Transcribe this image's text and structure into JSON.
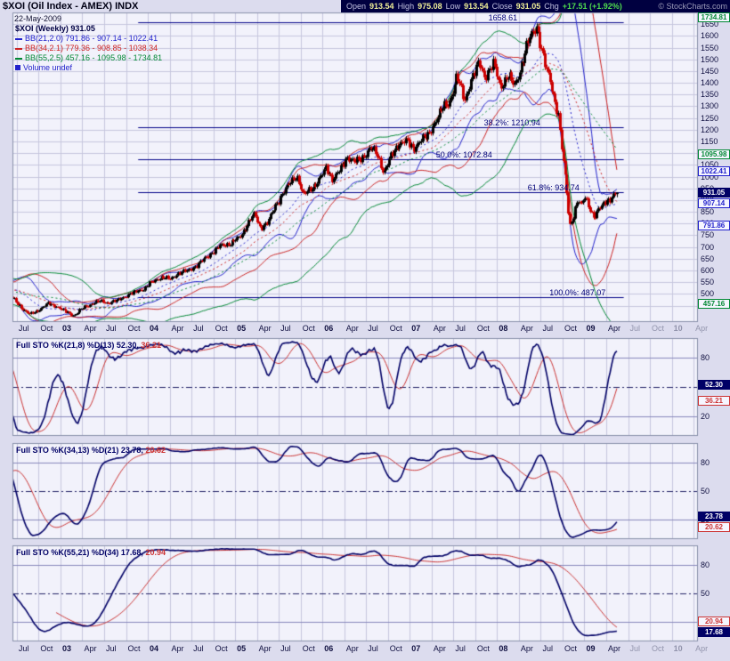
{
  "header": {
    "symbol_title": "$XOI (Oil Index - AMEX) INDX",
    "date": "22-May-2009",
    "copyright": "© StockCharts.com",
    "ohlc": {
      "open_label": "Open",
      "open": "913.54",
      "high_label": "High",
      "high": "975.08",
      "low_label": "Low",
      "low": "913.54",
      "close_label": "Close",
      "close": "931.05",
      "chg_label": "Chg",
      "chg": "+17.51 (+1.92%)"
    }
  },
  "main_legend": {
    "title": "$XOI (Weekly) 931.05",
    "bb21": "BB(21,2.0) 791.86 - 907.14 - 1022.41",
    "bb34": "BB(34,2.1) 779.36 - 908.85 - 1038.34",
    "bb55": "BB(55,2.5) 457.16 - 1095.98 - 1734.81",
    "volume": "Volume undef"
  },
  "colors": {
    "page_bg": "#dcdcee",
    "plot_bg": "#f2f2fb",
    "grid": "#c6c6de",
    "frame": "#8890aa",
    "header_bar_bg": "#000040",
    "candle_up": "#000000",
    "candle_down": "#cc0000",
    "bb21": "#2222cc",
    "bb34": "#cc2222",
    "bb55": "#008833",
    "fib_line": "#000088",
    "axis_text": "#101040",
    "future_text": "#9294ac",
    "osc_ref": "#8888bb",
    "osc_mid": "#222266",
    "sto_k": "#000066",
    "sto_d": "#cc3333"
  },
  "chart_data": {
    "type": "candlestick",
    "main": {
      "symbol": "$XOI",
      "timeframe": "Weekly",
      "last_close": 931.05,
      "ylim": [
        380,
        1700
      ],
      "y_ticks": {
        "start": 450,
        "end": 1650,
        "step": 50
      },
      "x_range": [
        2002.45,
        2010.3
      ],
      "x_quarter_start": 2002.5,
      "last_t": 2009.39,
      "series_start": 2000.9,
      "x_labels": [
        "Jul",
        "Oct",
        "03",
        "Apr",
        "Jul",
        "Oct",
        "04",
        "Apr",
        "Jul",
        "Oct",
        "05",
        "Apr",
        "Jul",
        "Oct",
        "06",
        "Apr",
        "Jul",
        "Oct",
        "07",
        "Apr",
        "Jul",
        "Oct",
        "08",
        "Apr",
        "Jul",
        "Oct",
        "09",
        "Apr",
        "Jul",
        "Oct",
        "10",
        "Apr"
      ],
      "anchors": [
        [
          2000.9,
          545
        ],
        [
          2001.15,
          585
        ],
        [
          2001.4,
          555
        ],
        [
          2001.7,
          465
        ],
        [
          2001.9,
          505
        ],
        [
          2002.1,
          525
        ],
        [
          2002.3,
          540
        ],
        [
          2002.46,
          478
        ],
        [
          2002.55,
          440
        ],
        [
          2002.65,
          412
        ],
        [
          2002.75,
          432
        ],
        [
          2002.85,
          458
        ],
        [
          2002.95,
          448
        ],
        [
          2003.05,
          425
        ],
        [
          2003.15,
          408
        ],
        [
          2003.25,
          438
        ],
        [
          2003.35,
          458
        ],
        [
          2003.45,
          468
        ],
        [
          2003.55,
          462
        ],
        [
          2003.65,
          472
        ],
        [
          2003.75,
          492
        ],
        [
          2003.85,
          507
        ],
        [
          2003.95,
          522
        ],
        [
          2004.05,
          550
        ],
        [
          2004.15,
          572
        ],
        [
          2004.25,
          562
        ],
        [
          2004.35,
          588
        ],
        [
          2004.45,
          598
        ],
        [
          2004.55,
          618
        ],
        [
          2004.65,
          650
        ],
        [
          2004.75,
          682
        ],
        [
          2004.85,
          707
        ],
        [
          2004.95,
          717
        ],
        [
          2005.05,
          740
        ],
        [
          2005.13,
          792
        ],
        [
          2005.21,
          838
        ],
        [
          2005.29,
          785
        ],
        [
          2005.37,
          803
        ],
        [
          2005.45,
          868
        ],
        [
          2005.54,
          928
        ],
        [
          2005.62,
          968
        ],
        [
          2005.7,
          1008
        ],
        [
          2005.78,
          918
        ],
        [
          2005.87,
          952
        ],
        [
          2005.95,
          978
        ],
        [
          2006.04,
          1038
        ],
        [
          2006.12,
          988
        ],
        [
          2006.2,
          1028
        ],
        [
          2006.29,
          1088
        ],
        [
          2006.37,
          1058
        ],
        [
          2006.45,
          1078
        ],
        [
          2006.54,
          1122
        ],
        [
          2006.62,
          1098
        ],
        [
          2006.7,
          1018
        ],
        [
          2006.79,
          1088
        ],
        [
          2006.87,
          1142
        ],
        [
          2006.95,
          1152
        ],
        [
          2007.04,
          1118
        ],
        [
          2007.12,
          1158
        ],
        [
          2007.2,
          1168
        ],
        [
          2007.29,
          1238
        ],
        [
          2007.37,
          1288
        ],
        [
          2007.45,
          1318
        ],
        [
          2007.54,
          1428
        ],
        [
          2007.62,
          1325
        ],
        [
          2007.7,
          1408
        ],
        [
          2007.79,
          1482
        ],
        [
          2007.87,
          1428
        ],
        [
          2007.95,
          1478
        ],
        [
          2008.04,
          1388
        ],
        [
          2008.12,
          1428
        ],
        [
          2008.2,
          1388
        ],
        [
          2008.29,
          1492
        ],
        [
          2008.37,
          1590
        ],
        [
          2008.45,
          1648
        ],
        [
          2008.54,
          1480
        ],
        [
          2008.62,
          1390
        ],
        [
          2008.7,
          1258
        ],
        [
          2008.75,
          1080
        ],
        [
          2008.79,
          960
        ],
        [
          2008.83,
          790
        ],
        [
          2008.87,
          830
        ],
        [
          2008.92,
          900
        ],
        [
          2008.96,
          870
        ],
        [
          2009.0,
          920
        ],
        [
          2009.04,
          890
        ],
        [
          2009.08,
          840
        ],
        [
          2009.12,
          820
        ],
        [
          2009.16,
          860
        ],
        [
          2009.2,
          880
        ],
        [
          2009.25,
          905
        ],
        [
          2009.29,
          895
        ],
        [
          2009.33,
          915
        ],
        [
          2009.39,
          931.05
        ]
      ],
      "overlays": [
        {
          "name": "BB(21,2.0)",
          "period": 21,
          "mult": 2.0,
          "color": "#2222cc",
          "values": [
            791.86,
            907.14,
            1022.41
          ]
        },
        {
          "name": "BB(34,2.1)",
          "period": 34,
          "mult": 2.1,
          "color": "#cc2222",
          "values": [
            779.36,
            908.85,
            1038.34
          ]
        },
        {
          "name": "BB(55,2.5)",
          "period": 55,
          "mult": 2.5,
          "color": "#008833",
          "values": [
            457.16,
            1095.98,
            1734.81
          ]
        }
      ],
      "fib": {
        "t_range": [
          2003.89,
          2009.45
        ],
        "levels": [
          {
            "label": "1658.61",
            "price": 1658.61,
            "label_t": 2007.9
          },
          {
            "label": "38.2%: 1210.94",
            "price": 1210.94,
            "label_t": 2007.85
          },
          {
            "label": "50.0%: 1072.84",
            "price": 1072.84,
            "label_t": 2007.3
          },
          {
            "label": "61.8%: 934.74",
            "price": 934.74,
            "label_t": 2008.35
          },
          {
            "label": "100.0%: 487.07",
            "price": 487.07,
            "label_t": 2008.6
          }
        ]
      },
      "price_labels": [
        {
          "text": "1734.81",
          "price": 1734.81,
          "color": "#008833",
          "fill": false
        },
        {
          "text": "1095.98",
          "price": 1095.98,
          "color": "#008833",
          "fill": false
        },
        {
          "text": "1022.41",
          "price": 1022.41,
          "color": "#2222cc",
          "fill": false
        },
        {
          "text": "931.05",
          "price": 931.05,
          "color": "#000066",
          "fill": true
        },
        {
          "text": "907.14",
          "price": 907.14,
          "color": "#2222cc",
          "fill": false
        },
        {
          "text": "791.86",
          "price": 791.86,
          "color": "#2222cc",
          "fill": false
        },
        {
          "text": "457.16",
          "price": 457.16,
          "color": "#008833",
          "fill": false
        }
      ]
    },
    "sto_panels": [
      {
        "legend": "Full STO %K(21,8) %D(13)",
        "k_display": "52.30,",
        "d_display": "36.21",
        "params": {
          "period": 21,
          "smooth": 8,
          "dperiod": 13
        },
        "y_ticks": [
          80,
          50,
          20
        ],
        "value_labels": [
          {
            "text": "52.30",
            "value": 52.3,
            "color": "#000066",
            "fill": true
          },
          {
            "text": "36.21",
            "value": 36.21,
            "color": "#cc3333",
            "fill": false
          }
        ]
      },
      {
        "legend": "Full STO %K(34,13) %D(21)",
        "k_display": "23.78,",
        "d_display": "20.62",
        "params": {
          "period": 34,
          "smooth": 13,
          "dperiod": 21
        },
        "y_ticks": [
          80,
          50,
          20
        ],
        "value_labels": [
          {
            "text": "23.78",
            "value": 23.78,
            "color": "#000066",
            "fill": true
          },
          {
            "text": "20.62",
            "value": 20.62,
            "color": "#cc3333",
            "fill": false
          }
        ]
      },
      {
        "legend": "Full STO %K(55,21) %D(34)",
        "k_display": "17.68,",
        "d_display": "20.94",
        "params": {
          "period": 55,
          "smooth": 21,
          "dperiod": 34
        },
        "y_ticks": [
          80,
          50,
          20
        ],
        "value_labels": [
          {
            "text": "17.68",
            "value": 17.68,
            "color": "#000066",
            "fill": true
          },
          {
            "text": "20.94",
            "value": 20.94,
            "color": "#cc3333",
            "fill": false
          }
        ]
      }
    ]
  }
}
